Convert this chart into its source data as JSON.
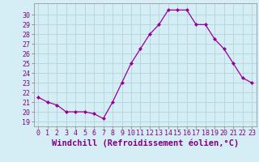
{
  "x": [
    0,
    1,
    2,
    3,
    4,
    5,
    6,
    7,
    8,
    9,
    10,
    11,
    12,
    13,
    14,
    15,
    16,
    17,
    18,
    19,
    20,
    21,
    22,
    23
  ],
  "y": [
    21.5,
    21.0,
    20.7,
    20.0,
    20.0,
    20.0,
    19.8,
    19.3,
    21.0,
    23.0,
    25.0,
    26.5,
    28.0,
    29.0,
    30.5,
    30.5,
    30.5,
    29.0,
    29.0,
    27.5,
    26.5,
    25.0,
    23.5,
    23.0
  ],
  "line_color": "#990099",
  "marker": "D",
  "marker_size": 2.0,
  "bg_color": "#d5eef5",
  "grid_color": "#b8d8e0",
  "xlabel": "Windchill (Refroidissement éolien,°C)",
  "xlabel_fontsize": 7.5,
  "ylabel_ticks": [
    19,
    20,
    21,
    22,
    23,
    24,
    25,
    26,
    27,
    28,
    29,
    30
  ],
  "ylim": [
    18.5,
    31.2
  ],
  "xlim": [
    -0.5,
    23.5
  ],
  "xtick_labels": [
    "0",
    "1",
    "2",
    "3",
    "4",
    "5",
    "6",
    "7",
    "8",
    "9",
    "10",
    "11",
    "12",
    "13",
    "14",
    "15",
    "16",
    "17",
    "18",
    "19",
    "20",
    "21",
    "22",
    "23"
  ],
  "tick_fontsize": 6.0,
  "tick_color": "#800080",
  "spine_color": "#999999"
}
